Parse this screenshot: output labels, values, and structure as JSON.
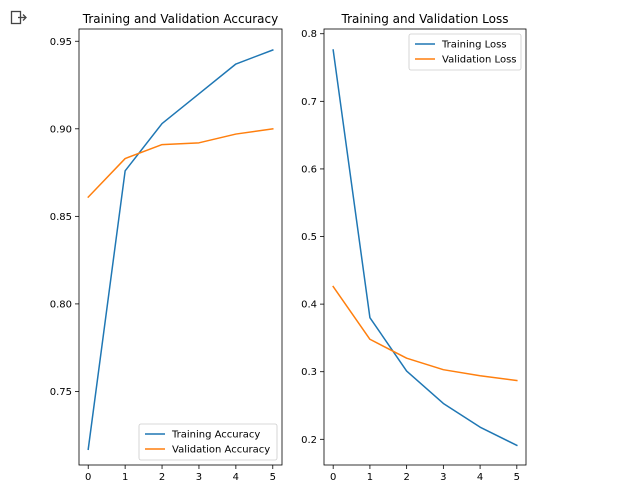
{
  "page": {
    "output_icon": "output-redirect-icon"
  },
  "colors": {
    "train": "#1f77b4",
    "val": "#ff7f0e",
    "axis": "#000000",
    "legend_border": "#cccccc"
  },
  "chart_data": [
    {
      "type": "line",
      "title": "Training and Validation Accuracy",
      "xlabel": "",
      "ylabel": "",
      "x": [
        0,
        1,
        2,
        3,
        4,
        5
      ],
      "xlim": [
        -0.25,
        5.25
      ],
      "ylim": [
        0.708,
        0.957
      ],
      "xticks": [
        0,
        1,
        2,
        3,
        4,
        5
      ],
      "yticks": [
        0.75,
        0.8,
        0.85,
        0.9,
        0.95
      ],
      "ytick_labels": [
        "0.75",
        "0.80",
        "0.85",
        "0.90",
        "0.95"
      ],
      "series": [
        {
          "name": "Training Accuracy",
          "color_key": "train",
          "values": [
            0.717,
            0.876,
            0.903,
            0.92,
            0.937,
            0.945
          ]
        },
        {
          "name": "Validation Accuracy",
          "color_key": "val",
          "values": [
            0.861,
            0.883,
            0.891,
            0.892,
            0.897,
            0.9
          ]
        }
      ],
      "legend": "lower right",
      "grid": false
    },
    {
      "type": "line",
      "title": "Training and Validation Loss",
      "xlabel": "",
      "ylabel": "",
      "x": [
        0,
        1,
        2,
        3,
        4,
        5
      ],
      "xlim": [
        -0.25,
        5.25
      ],
      "ylim": [
        0.162,
        0.807
      ],
      "xticks": [
        0,
        1,
        2,
        3,
        4,
        5
      ],
      "yticks": [
        0.2,
        0.3,
        0.4,
        0.5,
        0.6,
        0.7,
        0.8
      ],
      "ytick_labels": [
        "0.2",
        "0.3",
        "0.4",
        "0.5",
        "0.6",
        "0.7",
        "0.8"
      ],
      "series": [
        {
          "name": "Training Loss",
          "color_key": "train",
          "values": [
            0.776,
            0.38,
            0.301,
            0.253,
            0.218,
            0.191
          ]
        },
        {
          "name": "Validation Loss",
          "color_key": "val",
          "values": [
            0.426,
            0.348,
            0.32,
            0.303,
            0.294,
            0.287
          ]
        }
      ],
      "legend": "upper right",
      "grid": false
    }
  ]
}
